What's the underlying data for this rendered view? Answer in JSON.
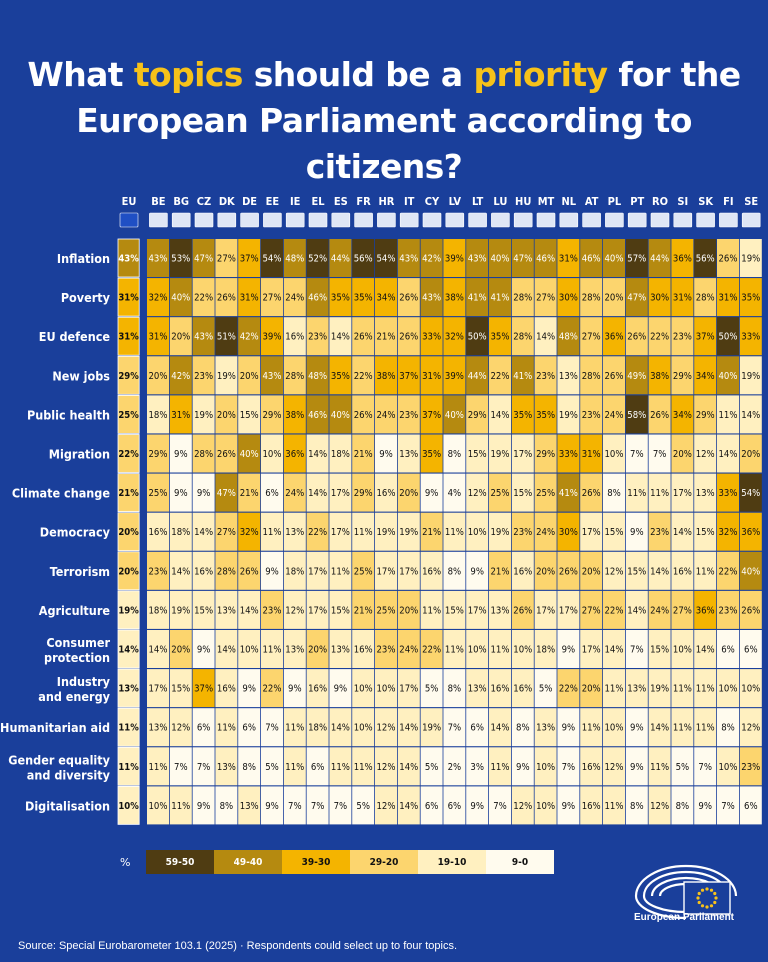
{
  "title": {
    "part1": "What ",
    "hl1": "topics",
    "part2": " should be a ",
    "hl2": "priority",
    "part3": " for the",
    "line2": "European Parliament according to citizens?"
  },
  "chart_data": {
    "type": "heatmap",
    "unit": "%",
    "countries": [
      "EU",
      "BE",
      "BG",
      "CZ",
      "DK",
      "DE",
      "EE",
      "IE",
      "EL",
      "ES",
      "FR",
      "HR",
      "IT",
      "CY",
      "LV",
      "LT",
      "LU",
      "HU",
      "MT",
      "NL",
      "AT",
      "PL",
      "PT",
      "RO",
      "SI",
      "SK",
      "FI",
      "SE"
    ],
    "topics": [
      "Inflation",
      "Poverty",
      "EU defence",
      "New jobs",
      "Public health",
      "Migration",
      "Climate change",
      "Democracy",
      "Terrorism",
      "Agriculture",
      "Consumer protection",
      "Industry and energy",
      "Humanitarian aid",
      "Gender equality and diversity",
      "Digitalisation"
    ],
    "values": [
      [
        43,
        43,
        53,
        47,
        27,
        37,
        54,
        48,
        52,
        44,
        56,
        54,
        43,
        42,
        39,
        43,
        40,
        47,
        46,
        31,
        46,
        40,
        57,
        44,
        36,
        56,
        26,
        19
      ],
      [
        31,
        32,
        40,
        22,
        26,
        31,
        27,
        24,
        46,
        35,
        35,
        34,
        26,
        43,
        38,
        41,
        41,
        28,
        27,
        30,
        28,
        20,
        47,
        30,
        31,
        28,
        31,
        35
      ],
      [
        31,
        31,
        20,
        43,
        51,
        42,
        39,
        16,
        23,
        14,
        26,
        21,
        26,
        33,
        32,
        50,
        35,
        28,
        14,
        48,
        27,
        36,
        26,
        22,
        23,
        37,
        50,
        33
      ],
      [
        29,
        20,
        42,
        23,
        19,
        20,
        43,
        28,
        48,
        35,
        22,
        38,
        37,
        31,
        39,
        44,
        22,
        41,
        23,
        13,
        28,
        26,
        49,
        38,
        29,
        34,
        40,
        19
      ],
      [
        25,
        18,
        31,
        19,
        20,
        15,
        29,
        38,
        46,
        40,
        26,
        24,
        23,
        37,
        40,
        29,
        14,
        35,
        35,
        19,
        23,
        24,
        58,
        26,
        34,
        29,
        11,
        14
      ],
      [
        22,
        29,
        9,
        28,
        26,
        40,
        10,
        36,
        14,
        18,
        21,
        9,
        13,
        35,
        8,
        15,
        19,
        17,
        29,
        33,
        31,
        10,
        7,
        7,
        20,
        12,
        14,
        20
      ],
      [
        21,
        25,
        9,
        9,
        47,
        21,
        6,
        24,
        14,
        17,
        29,
        16,
        20,
        9,
        4,
        12,
        25,
        15,
        25,
        41,
        26,
        8,
        11,
        11,
        17,
        13,
        33,
        54
      ],
      [
        20,
        16,
        18,
        14,
        27,
        32,
        11,
        13,
        22,
        17,
        11,
        19,
        19,
        21,
        11,
        10,
        19,
        23,
        24,
        30,
        17,
        15,
        9,
        23,
        14,
        15,
        32,
        36
      ],
      [
        20,
        23,
        14,
        16,
        28,
        26,
        9,
        18,
        17,
        11,
        25,
        17,
        17,
        16,
        8,
        9,
        21,
        16,
        20,
        26,
        20,
        12,
        15,
        14,
        16,
        11,
        22,
        40
      ],
      [
        19,
        18,
        19,
        15,
        13,
        14,
        23,
        12,
        17,
        15,
        21,
        25,
        20,
        11,
        15,
        17,
        13,
        26,
        17,
        17,
        27,
        22,
        14,
        24,
        27,
        36,
        23,
        26
      ],
      [
        14,
        14,
        20,
        9,
        14,
        10,
        11,
        13,
        20,
        13,
        16,
        23,
        24,
        22,
        11,
        10,
        11,
        10,
        18,
        9,
        17,
        14,
        7,
        15,
        10,
        14,
        6,
        6
      ],
      [
        13,
        17,
        15,
        37,
        16,
        9,
        22,
        9,
        16,
        9,
        10,
        10,
        17,
        5,
        8,
        13,
        16,
        16,
        5,
        22,
        20,
        11,
        13,
        19,
        11,
        11,
        10,
        10
      ],
      [
        11,
        13,
        12,
        6,
        11,
        6,
        7,
        11,
        18,
        14,
        10,
        12,
        14,
        19,
        7,
        6,
        14,
        8,
        13,
        9,
        11,
        10,
        9,
        14,
        11,
        11,
        8,
        12
      ],
      [
        11,
        11,
        7,
        7,
        13,
        8,
        5,
        11,
        6,
        11,
        11,
        12,
        14,
        5,
        2,
        3,
        11,
        9,
        10,
        7,
        16,
        12,
        9,
        11,
        5,
        7,
        10,
        23
      ],
      [
        10,
        10,
        11,
        9,
        8,
        13,
        9,
        7,
        7,
        7,
        5,
        12,
        14,
        6,
        6,
        9,
        7,
        12,
        10,
        9,
        16,
        11,
        8,
        12,
        8,
        9,
        7,
        6
      ]
    ],
    "legend": [
      {
        "label": "59-50",
        "color": "#4f3c12"
      },
      {
        "label": "49-40",
        "color": "#b58a10"
      },
      {
        "label": "39-30",
        "color": "#f4b400"
      },
      {
        "label": "29-20",
        "color": "#fcd56e"
      },
      {
        "label": "19-10",
        "color": "#fff0c0"
      },
      {
        "label": "9-0",
        "color": "#fffbee"
      }
    ],
    "legend_unit": "%"
  },
  "source": "Source: Special Eurobarometer 103.1 (2025) · Respondents could select up to four topics.",
  "brand": "European Parliament"
}
